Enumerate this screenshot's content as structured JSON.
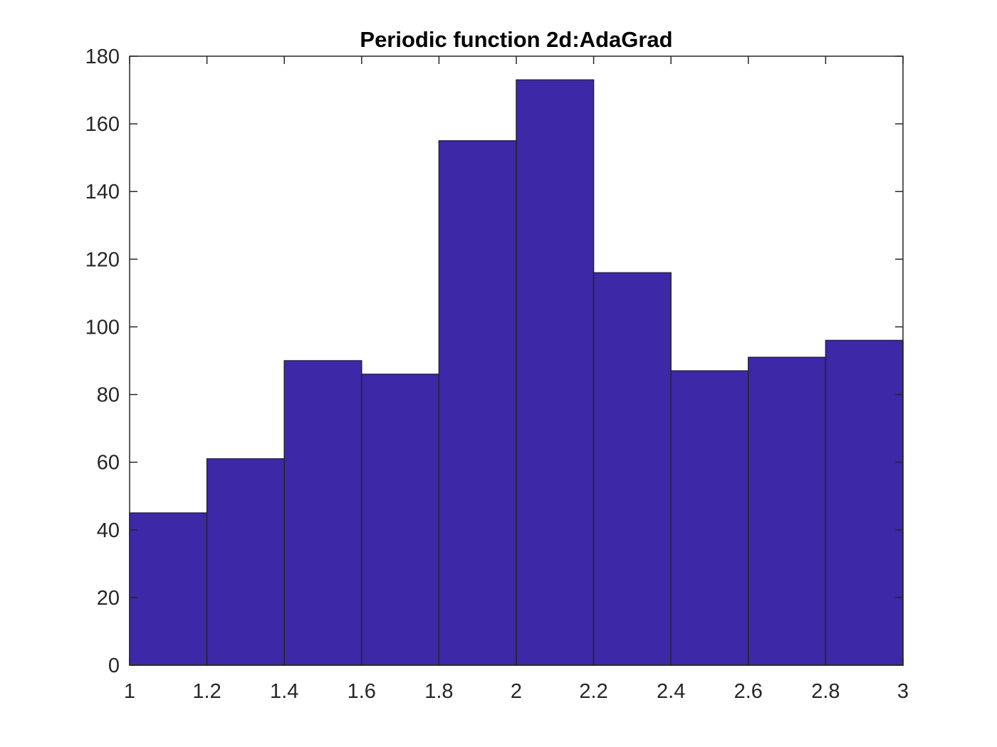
{
  "chart_data": {
    "type": "bar",
    "title": "Periodic function 2d:AdaGrad",
    "xlabel": "",
    "ylabel": "",
    "bin_edges": [
      1.0,
      1.2,
      1.4,
      1.6,
      1.8,
      2.0,
      2.2,
      2.4,
      2.6,
      2.8,
      3.0
    ],
    "values": [
      45,
      61,
      90,
      86,
      155,
      173,
      116,
      87,
      91,
      96
    ],
    "xlim": [
      1,
      3
    ],
    "ylim": [
      0,
      180
    ],
    "xticks": [
      "1",
      "1.2",
      "1.4",
      "1.6",
      "1.8",
      "2",
      "2.2",
      "2.4",
      "2.6",
      "2.8",
      "3"
    ],
    "yticks": [
      "0",
      "20",
      "40",
      "60",
      "80",
      "100",
      "120",
      "140",
      "160",
      "180"
    ],
    "grid": false,
    "legend": "none",
    "bar_color": "#3d28a8",
    "edge_color": "#262626"
  }
}
